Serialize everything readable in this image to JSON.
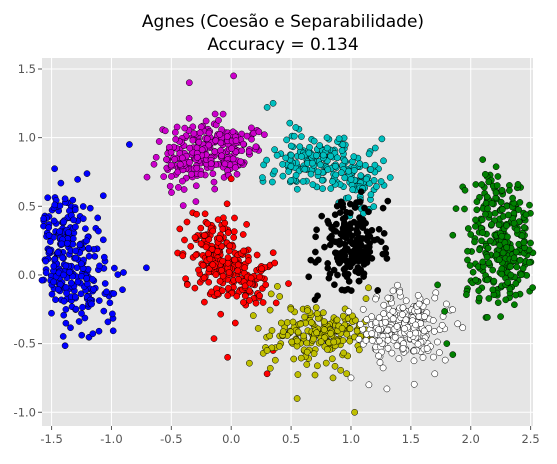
{
  "chart_data": {
    "type": "scatter",
    "title": "Agnes (Coesão e Separabilidade)",
    "subtitle": "Accuracy = 0.134",
    "xlabel": "",
    "ylabel": "",
    "xlim": [
      -1.58,
      2.52
    ],
    "ylim": [
      -1.1,
      1.58
    ],
    "x_ticks": [
      "-1.5",
      "-1.0",
      "-0.5",
      "0.0",
      "0.5",
      "1.0",
      "1.5",
      "2.0",
      "2.5"
    ],
    "y_ticks": [
      "-1.0",
      "-0.5",
      "0.0",
      "0.5",
      "1.0",
      "1.5"
    ],
    "grid": true,
    "background": "#e5e5e5",
    "clusters": [
      {
        "color": "#0000ff",
        "count": 300,
        "arc": {
          "cx": -1.0,
          "cy": 0.22,
          "r": 0.42,
          "a0": 150,
          "a1": 250
        },
        "spread": 0.17,
        "extra": [
          [
            -1.35,
            0.02
          ],
          [
            -1.25,
            -0.28
          ],
          [
            -1.3,
            0.35
          ],
          [
            -0.85,
            0.95
          ],
          [
            -1.4,
            0.0
          ]
        ]
      },
      {
        "color": "#cc00cc",
        "count": 260,
        "arc": {
          "cx": -0.1,
          "cy": 0.5,
          "r": 0.45,
          "a0": 60,
          "a1": 150
        },
        "spread": 0.11,
        "extra": [
          [
            -0.35,
            1.4
          ],
          [
            0.02,
            1.45
          ],
          [
            -0.55,
            1.05
          ],
          [
            -0.5,
            0.8
          ]
        ]
      },
      {
        "color": "#00bfbf",
        "count": 230,
        "arc": {
          "cx": 0.65,
          "cy": 0.25,
          "r": 0.6,
          "a0": 35,
          "a1": 115
        },
        "spread": 0.1,
        "extra": [
          [
            0.35,
            1.25
          ],
          [
            1.2,
            0.8
          ],
          [
            0.8,
            1.0
          ],
          [
            0.3,
            1.22
          ]
        ]
      },
      {
        "color": "#000000",
        "count": 190,
        "center": [
          1.0,
          0.22
        ],
        "sd": [
          0.13,
          0.15
        ],
        "extra": [
          [
            0.7,
            -0.18
          ],
          [
            1.3,
            0.12
          ]
        ]
      },
      {
        "color": "#ff0000",
        "count": 260,
        "arc": {
          "cx": 0.35,
          "cy": 0.5,
          "r": 0.6,
          "a0": 200,
          "a1": 255
        },
        "spread": 0.12,
        "extra": [
          [
            -0.03,
            -0.6
          ],
          [
            0.3,
            -0.72
          ],
          [
            0.35,
            -0.55
          ],
          [
            0.0,
            0.7
          ]
        ]
      },
      {
        "color": "#bfbf00",
        "count": 200,
        "center": [
          0.72,
          -0.43
        ],
        "sd": [
          0.22,
          0.11
        ],
        "extra": [
          [
            0.55,
            -0.9
          ],
          [
            1.03,
            -1.0
          ],
          [
            0.3,
            -0.55
          ],
          [
            0.85,
            -0.75
          ]
        ]
      },
      {
        "color": "#ffffff",
        "count": 230,
        "center": [
          1.42,
          -0.38
        ],
        "sd": [
          0.2,
          0.13
        ],
        "extra": [
          [
            1.15,
            -0.8
          ],
          [
            1.3,
            -0.83
          ],
          [
            1.7,
            -0.72
          ],
          [
            1.0,
            -0.75
          ]
        ]
      },
      {
        "color": "#008000",
        "count": 300,
        "arc": {
          "cx": 1.97,
          "cy": 0.22,
          "r": 0.35,
          "a0": -60,
          "a1": 65
        },
        "spread": 0.15,
        "extra": [
          [
            2.35,
            0.56
          ],
          [
            2.1,
            0.84
          ],
          [
            1.8,
            -0.5
          ],
          [
            1.85,
            -0.58
          ],
          [
            2.3,
            0.2
          ]
        ]
      }
    ]
  }
}
